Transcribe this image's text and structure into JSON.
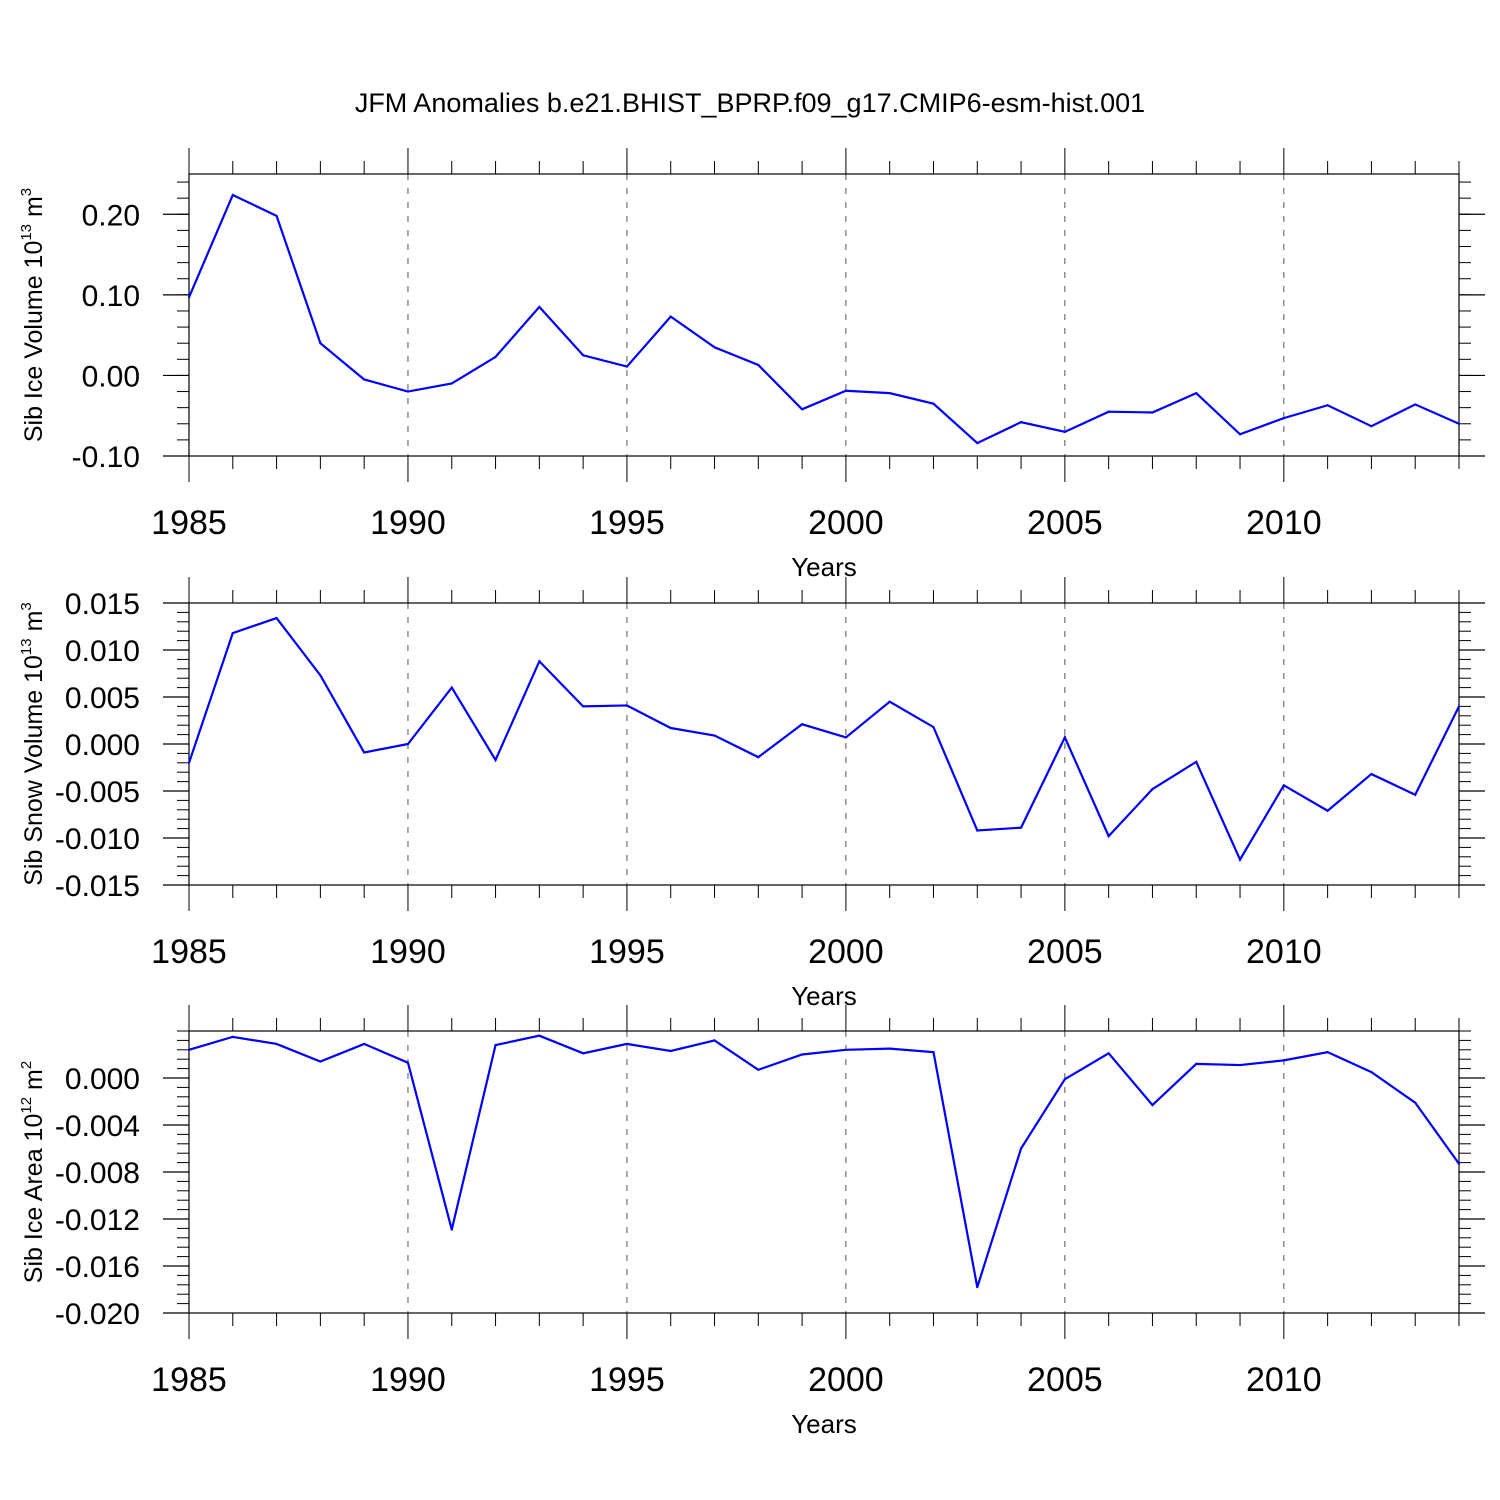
{
  "title": "JFM Anomalies b.e21.BHIST_BPRP.f09_g17.CMIP6-esm-hist.001",
  "colors": {
    "line": "#0000ff",
    "axis": "#000000",
    "grid": "#555555"
  },
  "chart_data": [
    {
      "type": "line",
      "name": "sib-ice-volume",
      "ylabel": {
        "main": "Sib Ice Volume 10",
        "exp": "13",
        "unit": " m",
        "unit_exp": "3"
      },
      "xlabel": "Years",
      "xlim": [
        1985,
        2014
      ],
      "ylim": [
        -0.1,
        0.25
      ],
      "yticks": [
        -0.1,
        0.0,
        0.1,
        0.2
      ],
      "ytick_labels": [
        "-0.10",
        "0.00",
        "0.10",
        "0.20"
      ],
      "yminor_step": 0.02,
      "xticks": [
        1985,
        1990,
        1995,
        2000,
        2005,
        2010
      ],
      "xtick_labels": [
        "1985",
        "1990",
        "1995",
        "2000",
        "2005",
        "2010"
      ],
      "grid_x": [
        1990,
        1995,
        2000,
        2005,
        2010
      ],
      "x": [
        1985,
        1986,
        1987,
        1988,
        1989,
        1990,
        1991,
        1992,
        1993,
        1994,
        1995,
        1996,
        1997,
        1998,
        1999,
        2000,
        2001,
        2002,
        2003,
        2004,
        2005,
        2006,
        2007,
        2008,
        2009,
        2010,
        2011,
        2012,
        2013,
        2014
      ],
      "series": [
        {
          "name": "Sib Ice Volume",
          "values": [
            0.097,
            0.224,
            0.198,
            0.04,
            -0.005,
            -0.02,
            -0.01,
            0.023,
            0.085,
            0.025,
            0.011,
            0.073,
            0.035,
            0.013,
            -0.042,
            -0.019,
            -0.022,
            -0.035,
            -0.084,
            -0.058,
            -0.07,
            -0.045,
            -0.046,
            -0.022,
            -0.073,
            -0.053,
            -0.037,
            -0.063,
            -0.036,
            -0.06
          ]
        }
      ]
    },
    {
      "type": "line",
      "name": "sib-snow-volume",
      "ylabel": {
        "main": "Sib Snow Volume 10",
        "exp": "13",
        "unit": " m",
        "unit_exp": "3"
      },
      "xlabel": "Years",
      "xlim": [
        1985,
        2014
      ],
      "ylim": [
        -0.015,
        0.015
      ],
      "yticks": [
        -0.015,
        -0.01,
        -0.005,
        0.0,
        0.005,
        0.01,
        0.015
      ],
      "ytick_labels": [
        "-0.015",
        "-0.010",
        "-0.005",
        "0.000",
        "0.005",
        "0.010",
        "0.015"
      ],
      "yminor_step": 0.001,
      "xticks": [
        1985,
        1990,
        1995,
        2000,
        2005,
        2010
      ],
      "xtick_labels": [
        "1985",
        "1990",
        "1995",
        "2000",
        "2005",
        "2010"
      ],
      "grid_x": [
        1990,
        1995,
        2000,
        2005,
        2010
      ],
      "x": [
        1985,
        1986,
        1987,
        1988,
        1989,
        1990,
        1991,
        1992,
        1993,
        1994,
        1995,
        1996,
        1997,
        1998,
        1999,
        2000,
        2001,
        2002,
        2003,
        2004,
        2005,
        2006,
        2007,
        2008,
        2009,
        2010,
        2011,
        2012,
        2013,
        2014
      ],
      "series": [
        {
          "name": "Sib Snow Volume",
          "values": [
            -0.002,
            0.0118,
            0.0134,
            0.0073,
            -0.0009,
            0.0,
            0.006,
            -0.0017,
            0.0088,
            0.004,
            0.0041,
            0.0017,
            0.0009,
            -0.0014,
            0.0021,
            0.0007,
            0.0045,
            0.0018,
            -0.0092,
            -0.0089,
            0.0007,
            -0.0098,
            -0.0048,
            -0.0019,
            -0.0123,
            -0.0044,
            -0.0071,
            -0.0032,
            -0.0054,
            0.004
          ]
        }
      ]
    },
    {
      "type": "line",
      "name": "sib-ice-area",
      "ylabel": {
        "main": "Sib Ice Area 10",
        "exp": "12",
        "unit": " m",
        "unit_exp": "2"
      },
      "xlabel": "Years",
      "xlim": [
        1985,
        2014
      ],
      "ylim": [
        -0.02,
        0.004
      ],
      "yticks": [
        -0.02,
        -0.016,
        -0.012,
        -0.008,
        -0.004,
        0.0
      ],
      "ytick_labels": [
        "-0.020",
        "-0.016",
        "-0.012",
        "-0.008",
        "-0.004",
        "0.000"
      ],
      "yminor_step": 0.0008,
      "xticks": [
        1985,
        1990,
        1995,
        2000,
        2005,
        2010
      ],
      "xtick_labels": [
        "1985",
        "1990",
        "1995",
        "2000",
        "2005",
        "2010"
      ],
      "grid_x": [
        1990,
        1995,
        2000,
        2005,
        2010
      ],
      "x": [
        1985,
        1986,
        1987,
        1988,
        1989,
        1990,
        1991,
        1992,
        1993,
        1994,
        1995,
        1996,
        1997,
        1998,
        1999,
        2000,
        2001,
        2002,
        2003,
        2004,
        2005,
        2006,
        2007,
        2008,
        2009,
        2010,
        2011,
        2012,
        2013,
        2014
      ],
      "series": [
        {
          "name": "Sib Ice Area",
          "values": [
            0.0024,
            0.0035,
            0.0029,
            0.0014,
            0.0029,
            0.0013,
            -0.0129,
            0.0028,
            0.0036,
            0.0021,
            0.0029,
            0.0023,
            0.0032,
            0.0007,
            0.002,
            0.0024,
            0.0025,
            0.0022,
            -0.0178,
            -0.006,
            -0.0001,
            0.0021,
            -0.0023,
            0.0012,
            0.0011,
            0.0015,
            0.0022,
            0.0005,
            -0.0021,
            -0.0073
          ]
        }
      ]
    }
  ]
}
